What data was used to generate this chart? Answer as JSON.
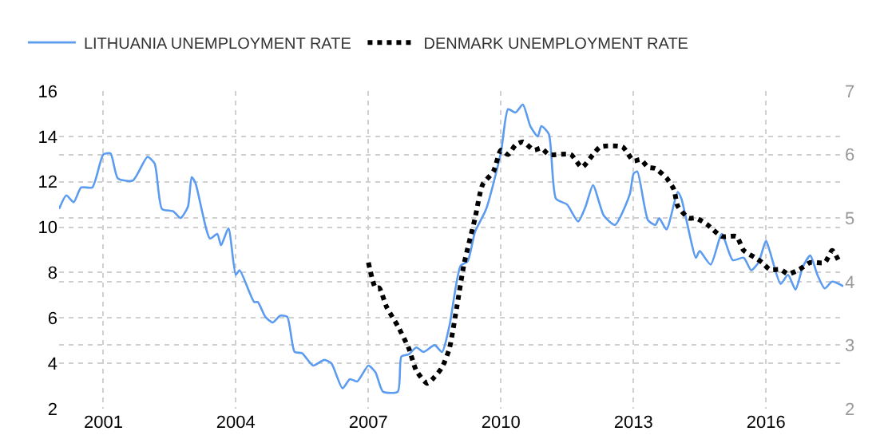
{
  "chart_data": {
    "type": "line",
    "legend": "top left",
    "grid": true,
    "marker": "none",
    "xlim": [
      "2000-01",
      "2017-10"
    ],
    "xticks": [
      "2001",
      "2004",
      "2007",
      "2010",
      "2013",
      "2016"
    ],
    "ylim": [
      2,
      16
    ],
    "yticks": [
      2,
      4,
      6,
      8,
      10,
      12,
      14,
      16
    ],
    "y2lim": [
      2,
      7
    ],
    "y2ticks": [
      2,
      3,
      4,
      5,
      6,
      7
    ],
    "series": [
      {
        "name": "LITHUANIA UNEMPLOYMENT RATE",
        "color": "#5b9bf0",
        "line_style": "solid",
        "x": [
          "2000-01",
          "2000-03",
          "2000-05",
          "2000-07",
          "2000-10",
          "2001-01",
          "2001-03",
          "2001-05",
          "2001-09",
          "2002-01",
          "2002-03",
          "2002-05",
          "2002-08",
          "2002-10",
          "2002-12",
          "2003-01",
          "2003-02",
          "2003-06",
          "2003-08",
          "2003-09",
          "2003-11",
          "2004-01",
          "2004-02",
          "2004-06",
          "2004-07",
          "2004-09",
          "2004-11",
          "2005-01",
          "2005-03",
          "2005-05",
          "2005-07",
          "2005-10",
          "2006-01",
          "2006-03",
          "2006-06",
          "2006-08",
          "2006-10",
          "2007-01",
          "2007-03",
          "2007-05",
          "2007-09",
          "2007-10",
          "2007-12",
          "2008-02",
          "2008-04",
          "2008-07",
          "2008-09",
          "2008-11",
          "2009-02",
          "2009-04",
          "2009-06",
          "2009-09",
          "2010-01",
          "2010-03",
          "2010-05",
          "2010-07",
          "2010-09",
          "2010-11",
          "2010-12",
          "2011-02",
          "2011-04",
          "2011-07",
          "2011-10",
          "2011-12",
          "2012-02",
          "2012-05",
          "2012-08",
          "2012-12",
          "2013-01",
          "2013-02",
          "2013-05",
          "2013-07",
          "2013-08",
          "2013-10",
          "2014-01",
          "2014-02",
          "2014-06",
          "2014-07",
          "2014-10",
          "2015-01",
          "2015-04",
          "2015-07",
          "2015-09",
          "2015-11",
          "2016-01",
          "2016-02",
          "2016-05",
          "2016-07",
          "2016-09",
          "2016-11",
          "2017-01",
          "2017-03",
          "2017-05",
          "2017-07",
          "2017-10"
        ],
        "values": [
          10.8,
          11.4,
          11.1,
          11.75,
          11.75,
          13.2,
          13.25,
          12.15,
          12.05,
          13.1,
          12.8,
          10.8,
          10.7,
          10.4,
          10.9,
          12.2,
          11.95,
          9.5,
          9.7,
          9.2,
          9.95,
          7.9,
          8.1,
          6.7,
          6.7,
          6.05,
          5.8,
          6.1,
          6.05,
          4.5,
          4.45,
          3.9,
          4.15,
          4.0,
          2.9,
          3.3,
          3.2,
          3.9,
          3.6,
          2.75,
          2.75,
          4.3,
          4.4,
          4.7,
          4.5,
          4.8,
          4.5,
          5.65,
          8.3,
          8.5,
          9.8,
          10.8,
          13.3,
          15.2,
          15.05,
          15.4,
          14.45,
          14.0,
          14.45,
          14.1,
          11.25,
          11.0,
          10.25,
          10.9,
          11.85,
          10.5,
          10.1,
          11.45,
          12.35,
          12.45,
          10.3,
          10.1,
          10.4,
          9.9,
          11.55,
          11.25,
          8.65,
          8.95,
          8.35,
          9.7,
          8.55,
          8.65,
          8.1,
          8.45,
          9.4,
          8.95,
          7.5,
          7.9,
          7.25,
          8.25,
          8.75,
          7.9,
          7.3,
          7.6,
          7.4
        ]
      },
      {
        "name": "DENMARK UNEMPLOYMENT RATE",
        "color": "#000000",
        "line_style": "dotted",
        "axis": "y2",
        "x": [
          "2007-01",
          "2007-03",
          "2007-04",
          "2007-06",
          "2007-09",
          "2007-12",
          "2008-02",
          "2008-05",
          "2008-07",
          "2008-09",
          "2008-11",
          "2009-01",
          "2009-03",
          "2009-06",
          "2009-08",
          "2009-11",
          "2010-01",
          "2010-03",
          "2010-05",
          "2010-07",
          "2010-10",
          "2010-12",
          "2011-02",
          "2011-08",
          "2011-11",
          "2012-02",
          "2012-04",
          "2012-10",
          "2013-01",
          "2013-03",
          "2013-05",
          "2013-07",
          "2013-10",
          "2013-12",
          "2014-01",
          "2014-04",
          "2014-06",
          "2014-09",
          "2015-01",
          "2015-05",
          "2015-07",
          "2015-10",
          "2015-12",
          "2016-02",
          "2016-05",
          "2016-07",
          "2016-10",
          "2017-01",
          "2017-05",
          "2017-07",
          "2017-09"
        ],
        "values": [
          4.3,
          3.9,
          3.9,
          3.6,
          3.3,
          2.95,
          2.6,
          2.4,
          2.5,
          2.65,
          2.95,
          3.6,
          4.27,
          5.0,
          5.52,
          5.74,
          6.07,
          6.0,
          6.15,
          6.2,
          6.07,
          6.1,
          6.0,
          6.0,
          5.8,
          6.0,
          6.12,
          6.12,
          5.9,
          5.92,
          5.8,
          5.78,
          5.63,
          5.45,
          5.19,
          5.0,
          5.0,
          4.9,
          4.71,
          4.71,
          4.49,
          4.38,
          4.3,
          4.19,
          4.19,
          4.12,
          4.19,
          4.3,
          4.3,
          4.49,
          4.3
        ]
      }
    ]
  }
}
